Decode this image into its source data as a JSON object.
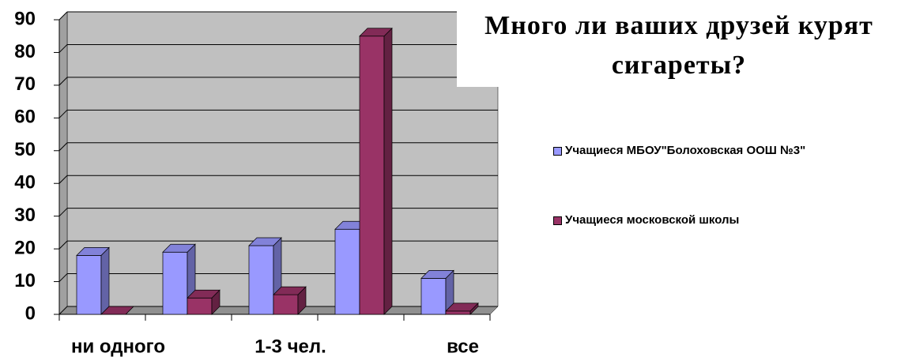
{
  "chart_data": {
    "type": "bar3d",
    "title": "Много ли ваших друзей курят сигареты?",
    "categories": [
      "ни одного",
      null,
      "1-3 чел.",
      null,
      "все"
    ],
    "series": [
      {
        "name": "Учащиеся МБОУ\"Болоховская ООШ №3\"",
        "color": "#9999ff",
        "values": [
          18,
          19,
          21,
          26,
          11
        ]
      },
      {
        "name": "Учащиеся московской школы",
        "color": "#993366",
        "values": [
          0,
          5,
          6,
          85,
          1
        ]
      }
    ],
    "ylim": [
      0,
      90
    ],
    "yticks": [
      0,
      10,
      20,
      30,
      40,
      50,
      60,
      70,
      80,
      90
    ],
    "grid": true
  }
}
